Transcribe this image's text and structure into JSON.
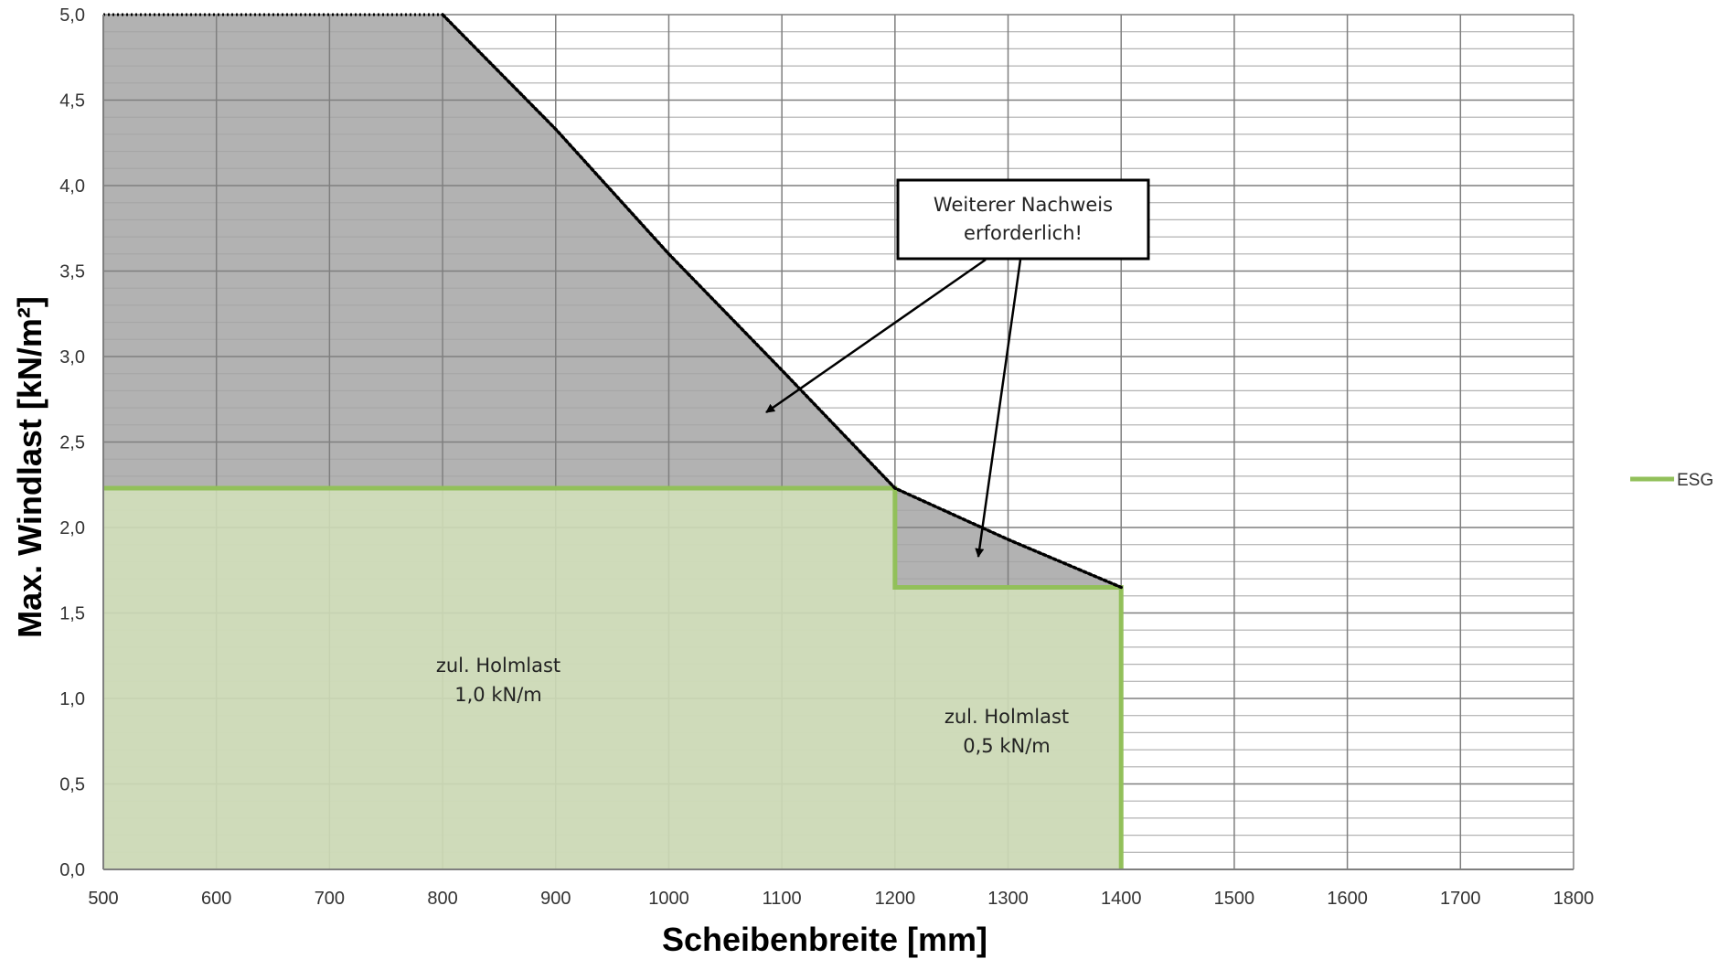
{
  "chart_data": {
    "type": "area",
    "xlabel": "Scheibenbreite [mm]",
    "ylabel": "Max. Windlast [kN/m²]",
    "xlim": [
      500,
      1800
    ],
    "ylim": [
      0,
      5
    ],
    "x_ticks": [
      "500",
      "600",
      "700",
      "800",
      "900",
      "1000",
      "1100",
      "1200",
      "1300",
      "1400",
      "1500",
      "1600",
      "1700",
      "1800"
    ],
    "y_ticks": [
      "0,0",
      "0,5",
      "1,0",
      "1,5",
      "2,0",
      "2,5",
      "3,0",
      "3,5",
      "4,0",
      "4,5",
      "5,0"
    ],
    "grid": true,
    "legend_position": "right",
    "series": [
      {
        "name": "ESG",
        "color": "#92c05a",
        "fill": "#d5e4bc",
        "x": [
          500,
          1200,
          1200,
          1400,
          1400
        ],
        "y": [
          2.23,
          2.23,
          1.65,
          1.65,
          0
        ]
      }
    ],
    "limit_curve": {
      "color": "#b2b2b2",
      "x": [
        500,
        800,
        900,
        1000,
        1100,
        1200,
        1300,
        1400
      ],
      "y": [
        5.0,
        5.0,
        4.33,
        3.6,
        2.92,
        2.23,
        1.93,
        1.65
      ]
    },
    "annotations": {
      "callout": [
        "Weiterer Nachweis",
        "erforderlich!"
      ],
      "region1": [
        "zul. Holmlast",
        "1,0 kN/m"
      ],
      "region2": [
        "zul. Holmlast",
        "0,5 kN/m"
      ]
    }
  }
}
